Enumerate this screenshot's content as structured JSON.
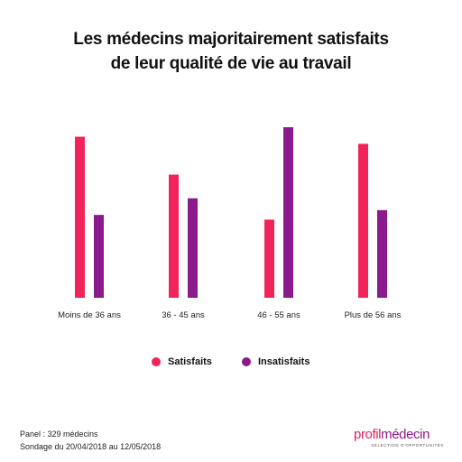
{
  "title_line1": "Les médecins majoritairement satisfaits",
  "title_line2": "de leur qualité de vie au travail",
  "chart_data": {
    "type": "bar",
    "categories": [
      "Moins de 36 ans",
      "36 - 45 ans",
      "46 - 55 ans",
      "Plus de 56 ans"
    ],
    "series": [
      {
        "name": "Satisfaits",
        "color": "#f0245a",
        "values": [
          68,
          52,
          33,
          65
        ]
      },
      {
        "name": "Insatisfaits",
        "color": "#8b1a8c",
        "values": [
          35,
          42,
          72,
          37
        ]
      }
    ],
    "ylim": [
      0,
      80
    ],
    "grid": false,
    "legend": "bottom-center"
  },
  "legend": {
    "satisfaits": "Satisfaits",
    "insatisfaits": "Insatisfaits",
    "satisfaits_color": "#f0245a",
    "insatisfaits_color": "#8b1a8c"
  },
  "footer": {
    "panel": "Panel : 329 médecins",
    "sondage": "Sondage du 20/04/2018 au 12/05/2018"
  },
  "logo": {
    "part1": "profil",
    "part2": "médecin",
    "tagline": "SÉLECTION D'OPPORTUNITÉS"
  }
}
